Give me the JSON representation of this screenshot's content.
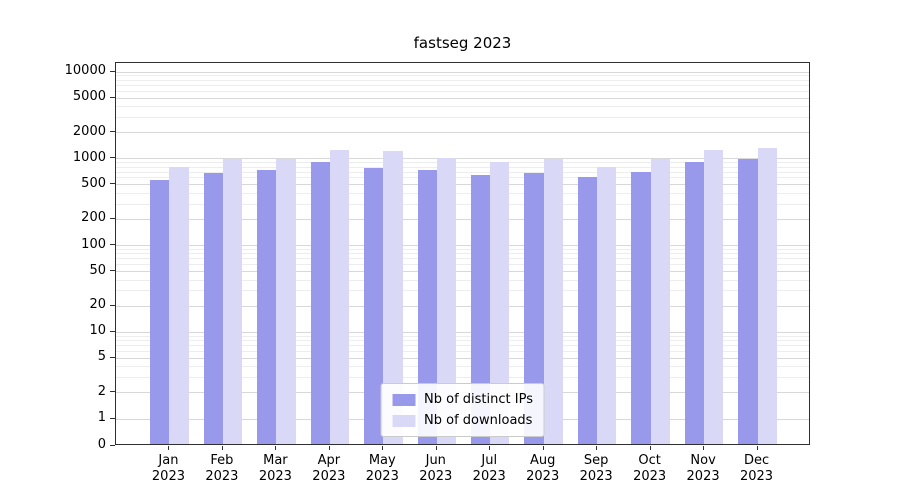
{
  "chart_data": {
    "type": "bar",
    "title": "fastseg 2023",
    "categories": [
      "Jan",
      "Feb",
      "Mar",
      "Apr",
      "May",
      "Jun",
      "Jul",
      "Aug",
      "Sep",
      "Oct",
      "Nov",
      "Dec"
    ],
    "year_label": "2023",
    "series": [
      {
        "name": "Nb of distinct IPs",
        "color": "#9999ec",
        "values": [
          540,
          650,
          700,
          860,
          750,
          710,
          610,
          650,
          590,
          660,
          870,
          930
        ]
      },
      {
        "name": "Nb of downloads",
        "color": "#d9d9f7",
        "values": [
          760,
          950,
          950,
          1200,
          1150,
          980,
          880,
          930,
          770,
          950,
          1200,
          1250
        ]
      }
    ],
    "yscale": "symlog",
    "yticks": [
      0,
      1,
      2,
      5,
      10,
      20,
      50,
      100,
      200,
      500,
      1000,
      2000,
      5000,
      10000
    ],
    "ylim": [
      0,
      12000
    ],
    "grid": "both",
    "legend_position": "lower center"
  }
}
